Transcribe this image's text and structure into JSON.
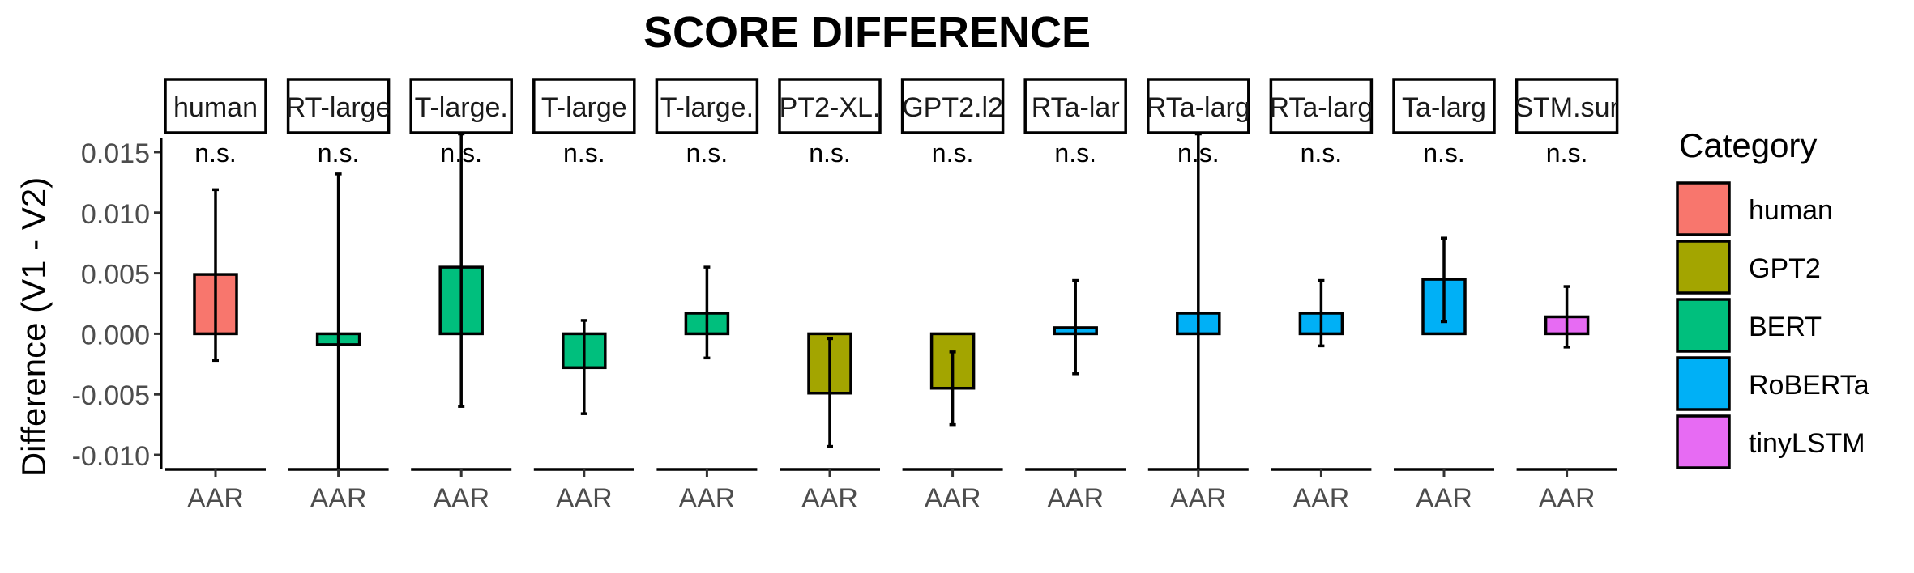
{
  "chart_data": {
    "type": "bar",
    "title": "SCORE DIFFERENCE",
    "ylabel": "Difference (V1 - V2)",
    "xlabel": "",
    "ylim": [
      -0.0112,
      0.0162
    ],
    "yticks": [
      "-0.010",
      "-0.005",
      "0.000",
      "0.005",
      "0.010",
      "0.015"
    ],
    "ytick_values": [
      -0.01,
      -0.005,
      0.0,
      0.005,
      0.01,
      0.015
    ],
    "legend": {
      "title": "Category",
      "position": "right",
      "entries": [
        {
          "name": "human",
          "color": "#F8766D"
        },
        {
          "name": "GPT2",
          "color": "#A3A500"
        },
        {
          "name": "BERT",
          "color": "#00BF7D"
        },
        {
          "name": "RoBERTa",
          "color": "#00B0F6"
        },
        {
          "name": "tinyLSTM",
          "color": "#E76BF3"
        }
      ]
    },
    "panels": [
      {
        "strip": "human",
        "category": "human",
        "x_label": "AAR",
        "value": 0.0049,
        "err_low": -0.0022,
        "err_high": 0.0119,
        "sig": "n.s."
      },
      {
        "strip": "RT-large",
        "category": "BERT",
        "x_label": "AAR",
        "value": -0.0009,
        "err_low": -0.0115,
        "err_high": 0.0132,
        "sig": "n.s."
      },
      {
        "strip": "T-large.",
        "category": "BERT",
        "x_label": "AAR",
        "value": 0.0055,
        "err_low": -0.006,
        "err_high": 0.0165,
        "sig": "n.s."
      },
      {
        "strip": "T-large",
        "category": "BERT",
        "x_label": "AAR",
        "value": -0.0028,
        "err_low": -0.0066,
        "err_high": 0.0011,
        "sig": "n.s."
      },
      {
        "strip": "T-large.",
        "category": "BERT",
        "x_label": "AAR",
        "value": 0.0017,
        "err_low": -0.002,
        "err_high": 0.0055,
        "sig": "n.s."
      },
      {
        "strip": "PT2-XL.",
        "category": "GPT2",
        "x_label": "AAR",
        "value": -0.0049,
        "err_low": -0.0093,
        "err_high": -0.0004,
        "sig": "n.s."
      },
      {
        "strip": "GPT2.l2",
        "category": "GPT2",
        "x_label": "AAR",
        "value": -0.0045,
        "err_low": -0.0075,
        "err_high": -0.0015,
        "sig": "n.s."
      },
      {
        "strip": "RTa-lar",
        "category": "RoBERTa",
        "x_label": "AAR",
        "value": 0.0005,
        "err_low": -0.0033,
        "err_high": 0.0044,
        "sig": "n.s."
      },
      {
        "strip": "RTa-larg",
        "category": "RoBERTa",
        "x_label": "AAR",
        "value": 0.0017,
        "err_low": -0.0115,
        "err_high": 0.0165,
        "sig": "n.s."
      },
      {
        "strip": "RTa-larg",
        "category": "RoBERTa",
        "x_label": "AAR",
        "value": 0.0017,
        "err_low": -0.001,
        "err_high": 0.0044,
        "sig": "n.s."
      },
      {
        "strip": "Ta-larg",
        "category": "RoBERTa",
        "x_label": "AAR",
        "value": 0.0045,
        "err_low": 0.001,
        "err_high": 0.0079,
        "sig": "n.s."
      },
      {
        "strip": "STM.sur",
        "category": "tinyLSTM",
        "x_label": "AAR",
        "value": 0.0014,
        "err_low": -0.0011,
        "err_high": 0.0039,
        "sig": "n.s."
      }
    ]
  }
}
